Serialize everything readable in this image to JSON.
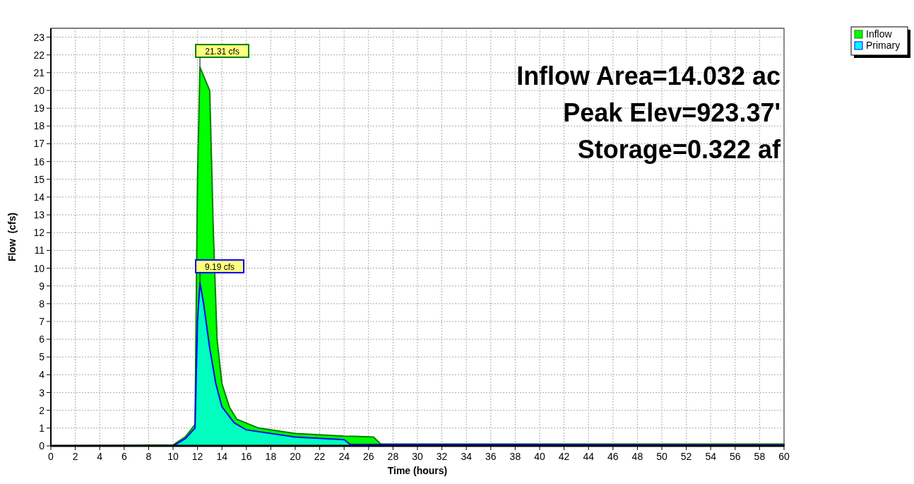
{
  "chart_data": {
    "type": "area",
    "xlabel": "Time  (hours)",
    "ylabel": "Flow  (cfs)",
    "xlim": [
      0,
      60
    ],
    "xticks": [
      0,
      2,
      4,
      6,
      8,
      10,
      12,
      14,
      16,
      18,
      20,
      22,
      24,
      26,
      28,
      30,
      32,
      34,
      36,
      38,
      40,
      42,
      44,
      46,
      48,
      50,
      52,
      54,
      56,
      58,
      60
    ],
    "ylim": [
      0,
      23.5
    ],
    "yticks": [
      0,
      1,
      2,
      3,
      4,
      5,
      6,
      7,
      8,
      9,
      10,
      11,
      12,
      13,
      14,
      15,
      16,
      17,
      18,
      19,
      20,
      21,
      22,
      23
    ],
    "grid": true,
    "legend": "top right",
    "series": [
      {
        "name": "Inflow",
        "color": "#00ff00",
        "x": [
          0,
          10,
          11,
          11.8,
          12.0,
          12.2,
          13.0,
          13.3,
          13.6,
          14.0,
          14.6,
          15.2,
          17,
          20,
          24,
          26.4,
          27,
          60
        ],
        "values": [
          0,
          0.05,
          0.5,
          1.2,
          15,
          21.31,
          20,
          12,
          6,
          3.5,
          2.2,
          1.5,
          1.0,
          0.7,
          0.55,
          0.5,
          0.1,
          0.1
        ]
      },
      {
        "name": "Primary",
        "color": "#00ffff",
        "x": [
          0,
          10,
          11,
          11.8,
          12.0,
          12.2,
          12.5,
          13,
          13.5,
          14,
          15,
          16,
          20,
          24,
          24.5,
          60
        ],
        "values": [
          0,
          0,
          0.4,
          1,
          7,
          9.19,
          8,
          5.5,
          3.5,
          2.2,
          1.3,
          0.9,
          0.5,
          0.35,
          0.08,
          0.05
        ]
      }
    ],
    "annotations": [
      {
        "text": "21.31 cfs",
        "x": 12.2,
        "y": 21.31
      },
      {
        "text": "9.19 cfs",
        "x": 12.2,
        "y": 9.19
      },
      "Inflow Area=14.032 ac",
      "Peak Elev=923.37'",
      "Storage=0.322 af"
    ]
  }
}
